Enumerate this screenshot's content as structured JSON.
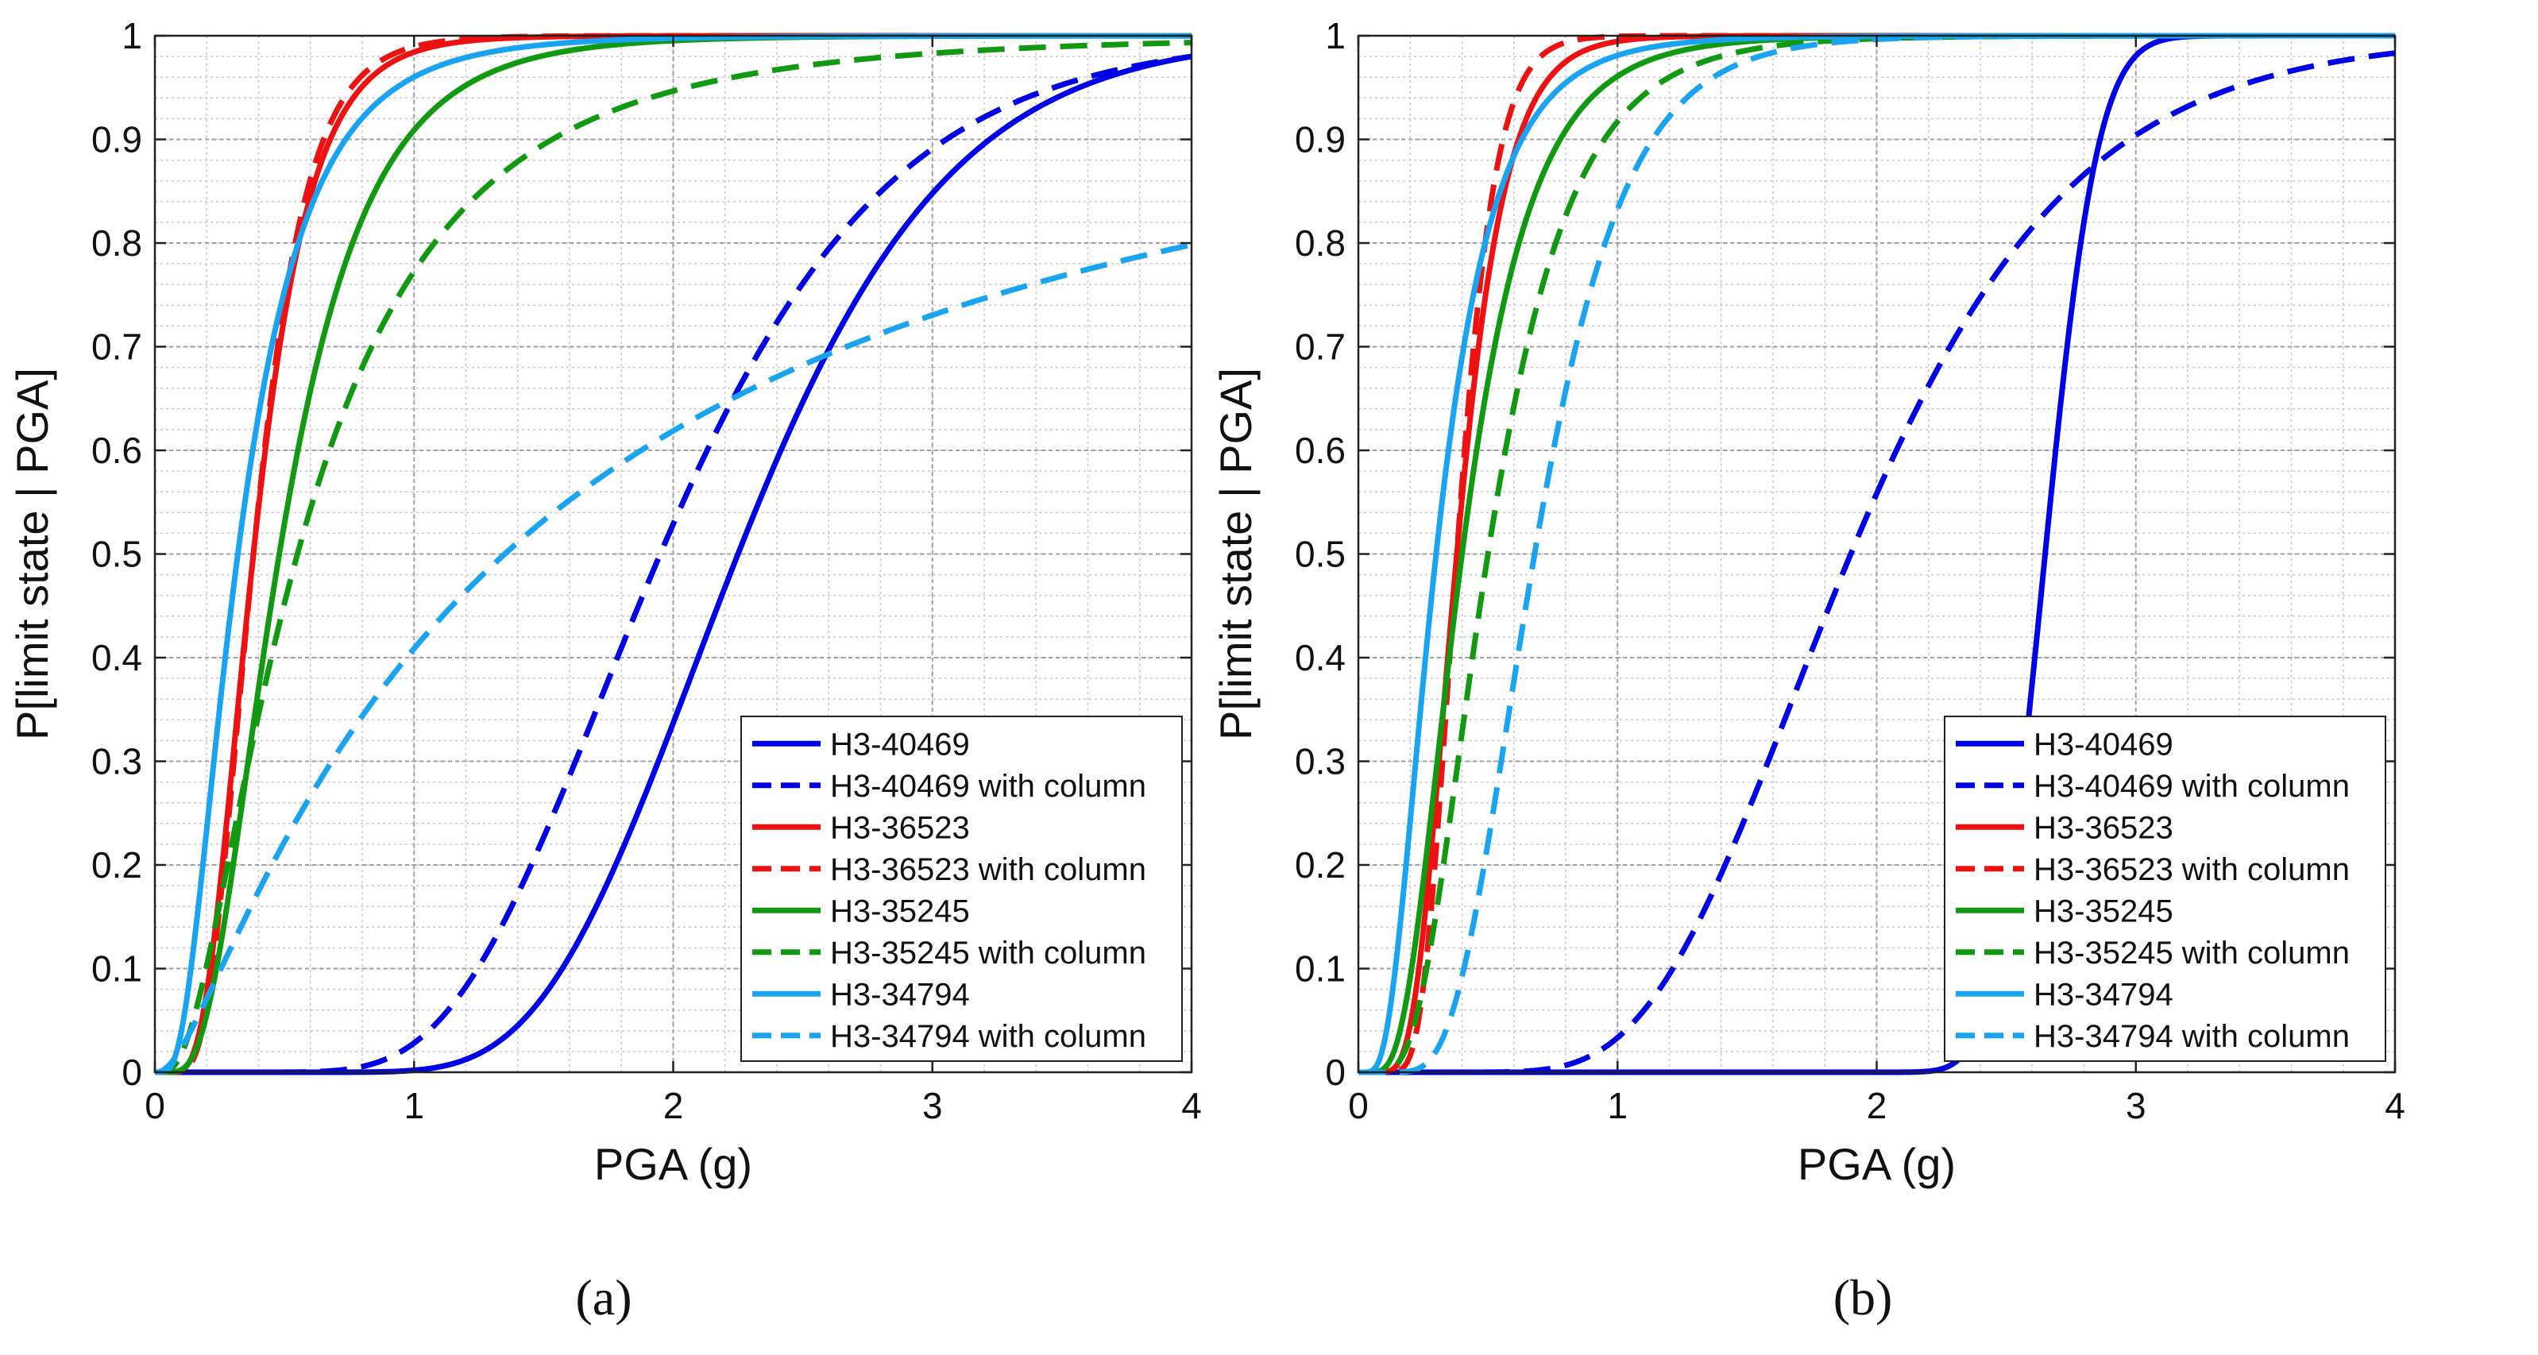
{
  "chart_data": [
    {
      "type": "line",
      "caption": "(a)",
      "xlabel": "PGA (g)",
      "ylabel": "P[limit state | PGA]",
      "xlim": [
        0,
        4
      ],
      "ylim": [
        0,
        1
      ],
      "xticks": [
        "0",
        "1",
        "2",
        "3",
        "4"
      ],
      "yticks": [
        "0",
        "0.1",
        "0.2",
        "0.3",
        "0.4",
        "0.5",
        "0.6",
        "0.7",
        "0.8",
        "0.9",
        "1"
      ],
      "grid": true,
      "legend_position": "bottom-right",
      "series": [
        {
          "name": "H3-40469",
          "color": "#0000e6",
          "dash": "solid",
          "median": 2.25,
          "beta": 0.28
        },
        {
          "name": "H3-40469 with column",
          "color": "#0000e6",
          "dash": "dashed",
          "median": 1.95,
          "beta": 0.35
        },
        {
          "name": "H3-36523",
          "color": "#ee1111",
          "dash": "solid",
          "median": 0.38,
          "beta": 0.45
        },
        {
          "name": "H3-36523 with column",
          "color": "#ee1111",
          "dash": "dashed",
          "median": 0.38,
          "beta": 0.42
        },
        {
          "name": "H3-35245",
          "color": "#119911",
          "dash": "solid",
          "median": 0.48,
          "beta": 0.55
        },
        {
          "name": "H3-35245 with column",
          "color": "#119911",
          "dash": "dashed",
          "median": 0.55,
          "beta": 0.8
        },
        {
          "name": "H3-34794",
          "color": "#1aa3f0",
          "dash": "solid",
          "median": 0.32,
          "beta": 0.65
        },
        {
          "name": "H3-34794 with column",
          "color": "#1aa3f0",
          "dash": "dashed",
          "median": 1.35,
          "beta": 1.3
        }
      ]
    },
    {
      "type": "line",
      "caption": "(b)",
      "xlabel": "PGA (g)",
      "ylabel": "P[limit state | PGA]",
      "xlim": [
        0,
        4
      ],
      "ylim": [
        0,
        1
      ],
      "xticks": [
        "0",
        "1",
        "2",
        "3",
        "4"
      ],
      "yticks": [
        "0",
        "0.1",
        "0.2",
        "0.3",
        "0.4",
        "0.5",
        "0.6",
        "0.7",
        "0.8",
        "0.9",
        "1"
      ],
      "grid": true,
      "legend_position": "bottom-right",
      "series": [
        {
          "name": "H3-40469",
          "color": "#0000e6",
          "dash": "solid",
          "median": 2.65,
          "beta": 0.06
        },
        {
          "name": "H3-40469 with column",
          "color": "#0000e6",
          "dash": "dashed",
          "median": 1.9,
          "beta": 0.35
        },
        {
          "name": "H3-36523",
          "color": "#ee1111",
          "dash": "solid",
          "median": 0.38,
          "beta": 0.38
        },
        {
          "name": "H3-36523 with column",
          "color": "#ee1111",
          "dash": "dashed",
          "median": 0.38,
          "beta": 0.3
        },
        {
          "name": "H3-35245",
          "color": "#119911",
          "dash": "solid",
          "median": 0.4,
          "beta": 0.52
        },
        {
          "name": "H3-35245 with column",
          "color": "#119911",
          "dash": "dashed",
          "median": 0.5,
          "beta": 0.5
        },
        {
          "name": "H3-34794",
          "color": "#1aa3f0",
          "dash": "solid",
          "median": 0.3,
          "beta": 0.58
        },
        {
          "name": "H3-34794 with column",
          "color": "#1aa3f0",
          "dash": "dashed",
          "median": 0.68,
          "beta": 0.4
        }
      ]
    }
  ]
}
